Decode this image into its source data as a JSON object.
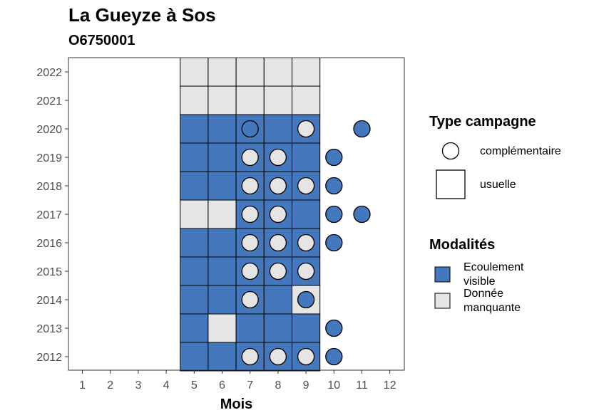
{
  "chart_data": {
    "type": "heatmap",
    "title": "La Gueyze à Sos",
    "subtitle": "O6750001",
    "xlabel": "Mois",
    "ylabel": "",
    "x_ticks": [
      1,
      2,
      3,
      4,
      5,
      6,
      7,
      8,
      9,
      10,
      11,
      12
    ],
    "y_ticks": [
      2012,
      2013,
      2014,
      2015,
      2016,
      2017,
      2018,
      2019,
      2020,
      2021,
      2022
    ],
    "grid": false,
    "legend_placement": "right",
    "colors": {
      "ecoulement_visible": "#4477bb",
      "donnee_manquante": "#e5e5e5"
    },
    "legend": {
      "type_title": "Type campagne",
      "type_items": [
        {
          "shape": "circle",
          "label": "complémentaire"
        },
        {
          "shape": "square",
          "label": "usuelle"
        }
      ],
      "mod_title": "Modalités",
      "mod_items": [
        {
          "key": "ecoulement_visible",
          "label": [
            "Ecoulement",
            "visible"
          ]
        },
        {
          "key": "donnee_manquante",
          "label": [
            "Donnée",
            "manquante"
          ]
        }
      ]
    },
    "usuelle": [
      {
        "year": 2022,
        "months": [
          5,
          6,
          7,
          8,
          9
        ],
        "values": [
          "donnee_manquante",
          "donnee_manquante",
          "donnee_manquante",
          "donnee_manquante",
          "donnee_manquante"
        ]
      },
      {
        "year": 2021,
        "months": [
          5,
          6,
          7,
          8,
          9
        ],
        "values": [
          "donnee_manquante",
          "donnee_manquante",
          "donnee_manquante",
          "donnee_manquante",
          "donnee_manquante"
        ]
      },
      {
        "year": 2020,
        "months": [
          5,
          6,
          7,
          8,
          9
        ],
        "values": [
          "ecoulement_visible",
          "ecoulement_visible",
          "ecoulement_visible",
          "ecoulement_visible",
          "ecoulement_visible"
        ]
      },
      {
        "year": 2019,
        "months": [
          5,
          6,
          7,
          8,
          9
        ],
        "values": [
          "ecoulement_visible",
          "ecoulement_visible",
          "ecoulement_visible",
          "ecoulement_visible",
          "ecoulement_visible"
        ]
      },
      {
        "year": 2018,
        "months": [
          5,
          6,
          7,
          8,
          9
        ],
        "values": [
          "ecoulement_visible",
          "ecoulement_visible",
          "ecoulement_visible",
          "ecoulement_visible",
          "ecoulement_visible"
        ]
      },
      {
        "year": 2017,
        "months": [
          5,
          6,
          7,
          8,
          9
        ],
        "values": [
          "donnee_manquante",
          "donnee_manquante",
          "ecoulement_visible",
          "ecoulement_visible",
          "ecoulement_visible"
        ]
      },
      {
        "year": 2016,
        "months": [
          5,
          6,
          7,
          8,
          9
        ],
        "values": [
          "ecoulement_visible",
          "ecoulement_visible",
          "ecoulement_visible",
          "ecoulement_visible",
          "ecoulement_visible"
        ]
      },
      {
        "year": 2015,
        "months": [
          5,
          6,
          7,
          8,
          9
        ],
        "values": [
          "ecoulement_visible",
          "ecoulement_visible",
          "ecoulement_visible",
          "ecoulement_visible",
          "ecoulement_visible"
        ]
      },
      {
        "year": 2014,
        "months": [
          5,
          6,
          7,
          8,
          9
        ],
        "values": [
          "ecoulement_visible",
          "ecoulement_visible",
          "ecoulement_visible",
          "ecoulement_visible",
          "donnee_manquante"
        ]
      },
      {
        "year": 2013,
        "months": [
          5,
          6,
          7,
          8,
          9
        ],
        "values": [
          "ecoulement_visible",
          "donnee_manquante",
          "ecoulement_visible",
          "ecoulement_visible",
          "ecoulement_visible"
        ]
      },
      {
        "year": 2012,
        "months": [
          5,
          6,
          7,
          8,
          9
        ],
        "values": [
          "ecoulement_visible",
          "ecoulement_visible",
          "ecoulement_visible",
          "ecoulement_visible",
          "ecoulement_visible"
        ]
      }
    ],
    "complementaire": [
      {
        "year": 2020,
        "month": 7,
        "value": "ecoulement_visible"
      },
      {
        "year": 2020,
        "month": 9,
        "value": "donnee_manquante"
      },
      {
        "year": 2020,
        "month": 11,
        "value": "ecoulement_visible"
      },
      {
        "year": 2019,
        "month": 7,
        "value": "donnee_manquante"
      },
      {
        "year": 2019,
        "month": 8,
        "value": "donnee_manquante"
      },
      {
        "year": 2019,
        "month": 10,
        "value": "ecoulement_visible"
      },
      {
        "year": 2018,
        "month": 7,
        "value": "donnee_manquante"
      },
      {
        "year": 2018,
        "month": 8,
        "value": "donnee_manquante"
      },
      {
        "year": 2018,
        "month": 9,
        "value": "donnee_manquante"
      },
      {
        "year": 2018,
        "month": 10,
        "value": "ecoulement_visible"
      },
      {
        "year": 2017,
        "month": 7,
        "value": "donnee_manquante"
      },
      {
        "year": 2017,
        "month": 8,
        "value": "donnee_manquante"
      },
      {
        "year": 2017,
        "month": 10,
        "value": "ecoulement_visible"
      },
      {
        "year": 2017,
        "month": 11,
        "value": "ecoulement_visible"
      },
      {
        "year": 2016,
        "month": 7,
        "value": "donnee_manquante"
      },
      {
        "year": 2016,
        "month": 8,
        "value": "donnee_manquante"
      },
      {
        "year": 2016,
        "month": 9,
        "value": "donnee_manquante"
      },
      {
        "year": 2016,
        "month": 10,
        "value": "ecoulement_visible"
      },
      {
        "year": 2015,
        "month": 7,
        "value": "donnee_manquante"
      },
      {
        "year": 2015,
        "month": 8,
        "value": "donnee_manquante"
      },
      {
        "year": 2015,
        "month": 9,
        "value": "donnee_manquante"
      },
      {
        "year": 2014,
        "month": 7,
        "value": "donnee_manquante"
      },
      {
        "year": 2014,
        "month": 9,
        "value": "ecoulement_visible"
      },
      {
        "year": 2013,
        "month": 10,
        "value": "ecoulement_visible"
      },
      {
        "year": 2012,
        "month": 7,
        "value": "donnee_manquante"
      },
      {
        "year": 2012,
        "month": 8,
        "value": "donnee_manquante"
      },
      {
        "year": 2012,
        "month": 9,
        "value": "donnee_manquante"
      },
      {
        "year": 2012,
        "month": 10,
        "value": "ecoulement_visible"
      }
    ]
  }
}
